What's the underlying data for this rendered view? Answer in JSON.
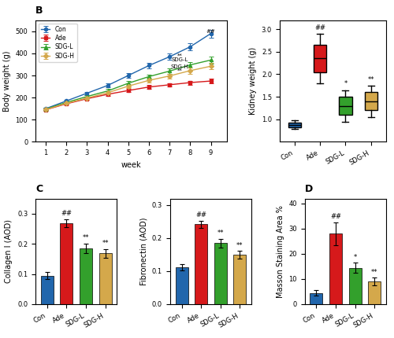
{
  "chart_data": [
    {
      "type": "line",
      "title": "B",
      "xlabel": "week",
      "ylabel": "Body weight (g)",
      "x": [
        1,
        2,
        3,
        4,
        5,
        6,
        7,
        8,
        9
      ],
      "series": [
        {
          "name": "Con",
          "color": "#2166ac",
          "marker": "circle",
          "values": [
            150,
            185,
            220,
            255,
            300,
            345,
            385,
            430,
            490
          ],
          "errors": [
            5,
            6,
            7,
            8,
            10,
            12,
            14,
            16,
            18
          ]
        },
        {
          "name": "Ade",
          "color": "#d6191b",
          "marker": "square",
          "values": [
            145,
            172,
            195,
            215,
            232,
            248,
            258,
            268,
            275
          ],
          "errors": [
            5,
            5,
            6,
            7,
            7,
            8,
            8,
            9,
            10
          ]
        },
        {
          "name": "SDG-L",
          "color": "#33a02c",
          "marker": "triangle",
          "values": [
            148,
            178,
            205,
            230,
            265,
            295,
            320,
            348,
            370
          ],
          "errors": [
            5,
            6,
            7,
            8,
            9,
            10,
            12,
            14,
            15
          ]
        },
        {
          "name": "SDG-H",
          "color": "#d4a84b",
          "marker": "diamond",
          "values": [
            146,
            174,
            198,
            222,
            252,
            278,
            298,
            322,
            342
          ],
          "errors": [
            5,
            6,
            7,
            8,
            9,
            10,
            11,
            13,
            14
          ]
        }
      ],
      "xlim": [
        0.5,
        9.8
      ],
      "xticks": [
        1,
        2,
        3,
        4,
        5,
        6,
        7,
        8,
        9
      ],
      "ylim": [
        0,
        550
      ],
      "yticks": [
        0,
        100,
        200,
        300,
        400,
        500
      ],
      "legend": "upper left",
      "annotations": [
        {
          "text": "##",
          "x": 9,
          "y": 490
        },
        {
          "text": "**\nSDG-L",
          "x": 7.5,
          "y": 360
        },
        {
          "text": "SDG-H\n**",
          "x": 7.5,
          "y": 310
        }
      ]
    },
    {
      "type": "box",
      "ylabel": "Kidney weight (g)",
      "categories": [
        "Con",
        "Ade",
        "SDG-L",
        "SDG-H"
      ],
      "colors": [
        "#2166ac",
        "#d6191b",
        "#33a02c",
        "#d4a84b"
      ],
      "values": [
        {
          "min": 0.78,
          "q1": 0.82,
          "median": 0.88,
          "q3": 0.93,
          "max": 0.97
        },
        {
          "min": 1.8,
          "q1": 2.05,
          "median": 2.35,
          "q3": 2.65,
          "max": 2.9
        },
        {
          "min": 0.95,
          "q1": 1.1,
          "median": 1.3,
          "q3": 1.5,
          "max": 1.65
        },
        {
          "min": 1.05,
          "q1": 1.2,
          "median": 1.4,
          "q3": 1.6,
          "max": 1.75
        }
      ],
      "ylim": [
        0.5,
        3.2
      ],
      "yticks": [
        {
          "value": 1,
          "label": "1.0"
        },
        1.5,
        {
          "value": 2,
          "label": "2.0"
        },
        2.5,
        {
          "value": 3,
          "label": "3.0"
        }
      ],
      "annotations": [
        null,
        "##",
        "*",
        "**"
      ]
    },
    {
      "type": "bar",
      "title": "C",
      "ylabel": "Collagen I (AOD)",
      "categories": [
        "Con",
        "Ade",
        "SDG-L",
        "SDG-H"
      ],
      "colors": [
        "#2166ac",
        "#d6191b",
        "#33a02c",
        "#d4a84b"
      ],
      "values": [
        0.095,
        0.268,
        0.185,
        0.168
      ],
      "errors": [
        0.012,
        0.013,
        0.016,
        0.014
      ],
      "ylim": [
        0.0,
        0.35
      ],
      "yticks": [
        {
          "value": 0,
          "label": "0.0"
        },
        0.1,
        0.2,
        0.3
      ],
      "annotations": [
        null,
        "##",
        "**",
        "**"
      ]
    },
    {
      "type": "bar",
      "ylabel": "Fibronectin (AOD)",
      "categories": [
        "Con",
        "Ade",
        "SDG-L",
        "SDG-H"
      ],
      "colors": [
        "#2166ac",
        "#d6191b",
        "#33a02c",
        "#d4a84b"
      ],
      "values": [
        0.112,
        0.242,
        0.185,
        0.15
      ],
      "errors": [
        0.009,
        0.011,
        0.013,
        0.011
      ],
      "ylim": [
        0.0,
        0.32
      ],
      "yticks": [
        {
          "value": 0,
          "label": "0.0"
        },
        0.1,
        0.2,
        0.3
      ],
      "annotations": [
        null,
        "##",
        "**",
        "**"
      ]
    },
    {
      "type": "bar",
      "title": "D",
      "ylabel": "Masson Staining Area %",
      "categories": [
        "Con",
        "Ade",
        "SDG-L",
        "SDG-H"
      ],
      "colors": [
        "#2166ac",
        "#d6191b",
        "#33a02c",
        "#d4a84b"
      ],
      "values": [
        4.5,
        28.0,
        14.5,
        9.0
      ],
      "errors": [
        1.0,
        4.5,
        2.0,
        1.5
      ],
      "ylim": [
        0,
        42
      ],
      "yticks": [
        0,
        10,
        20,
        30,
        40
      ],
      "annotations": [
        null,
        "##",
        "*",
        "**"
      ]
    }
  ]
}
